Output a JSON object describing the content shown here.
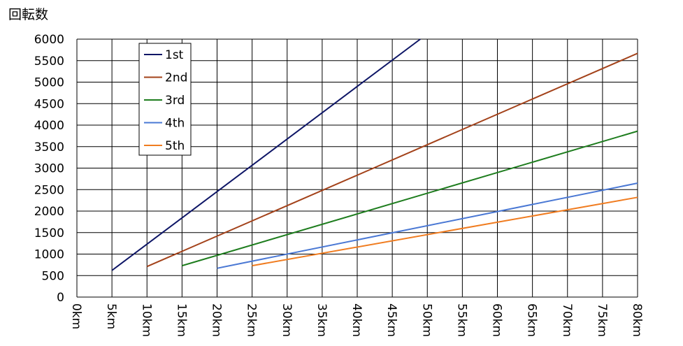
{
  "chart_data": {
    "type": "line",
    "ylabel": "回転数",
    "xlabel": "",
    "x_ticks": [
      "0km",
      "5km",
      "10km",
      "15km",
      "20km",
      "25km",
      "30km",
      "35km",
      "40km",
      "45km",
      "50km",
      "55km",
      "60km",
      "65km",
      "70km",
      "75km",
      "80km"
    ],
    "y_ticks": [
      "0",
      "500",
      "1000",
      "1500",
      "2000",
      "2500",
      "3000",
      "3500",
      "4000",
      "4500",
      "5000",
      "5500",
      "6000"
    ],
    "xlim": [
      0,
      80
    ],
    "ylim": [
      0,
      6000
    ],
    "grid": true,
    "legend_position": "top-left",
    "series": [
      {
        "name": "1st",
        "color": "#0d1566",
        "x": [
          5,
          49
        ],
        "y": [
          620,
          6000
        ]
      },
      {
        "name": "2nd",
        "color": "#a3421a",
        "x": [
          10,
          80
        ],
        "y": [
          710,
          5670
        ]
      },
      {
        "name": "3rd",
        "color": "#1e7d1e",
        "x": [
          15,
          80
        ],
        "y": [
          730,
          3860
        ]
      },
      {
        "name": "4th",
        "color": "#4a78d4",
        "x": [
          20,
          80
        ],
        "y": [
          670,
          2650
        ]
      },
      {
        "name": "5th",
        "color": "#f07c20",
        "x": [
          25,
          80
        ],
        "y": [
          730,
          2320
        ]
      }
    ]
  }
}
